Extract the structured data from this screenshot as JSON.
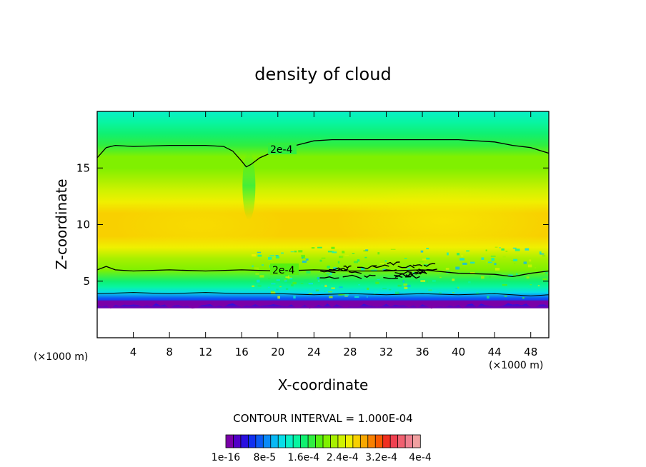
{
  "chart_data": {
    "type": "heatmap",
    "title": "density of cloud",
    "xlabel": "X-coordinate",
    "ylabel": "Z-coordinate",
    "x_unit": "(×1000 m)",
    "y_unit": "(×1000 m)",
    "xlim": [
      0,
      50
    ],
    "ylim": [
      0,
      20
    ],
    "x_ticks": [
      "4",
      "8",
      "12",
      "16",
      "20",
      "24",
      "28",
      "32",
      "36",
      "40",
      "44",
      "48"
    ],
    "y_ticks": [
      "5",
      "10",
      "15"
    ],
    "contour_interval_text": "CONTOUR INTERVAL = 1.000E-04",
    "contour_labels": [
      "2e-4",
      "2e-4"
    ],
    "colorbar_labels": [
      "1e-16",
      "8e-5",
      "1.6e-4",
      "2.4e-4",
      "3.2e-4",
      "4e-4"
    ],
    "colorbar_colors": [
      "#7a00a8",
      "#5200c8",
      "#2a10e0",
      "#1030f0",
      "#0a5af5",
      "#0a8af8",
      "#08b8f5",
      "#08dde8",
      "#08f0c8",
      "#08f5a0",
      "#10f070",
      "#30ee40",
      "#55f010",
      "#80f000",
      "#a8f000",
      "#d0f200",
      "#f0f000",
      "#f8d000",
      "#f8a800",
      "#f88000",
      "#f85a00",
      "#f03020",
      "#f04050",
      "#f06070",
      "#f08090",
      "#f0a0a0"
    ],
    "profile_z": [
      2.6,
      3.0,
      3.5,
      4.0,
      4.5,
      5.0,
      6.0,
      7.0,
      8.0,
      9.0,
      10.0,
      11.0,
      12.0,
      13.0,
      14.0,
      15.0,
      16.0,
      17.0,
      18.0,
      19.0,
      20.0
    ],
    "profile_value": [
      1e-16,
      4e-05,
      8e-05,
      0.00012,
      0.00015,
      0.00017,
      0.00021,
      0.00024,
      0.00026,
      0.00028,
      0.00029,
      0.000285,
      0.00027,
      0.00025,
      0.000235,
      0.000225,
      0.00021,
      0.00019,
      0.00017,
      0.000155,
      0.000145
    ],
    "contour_upper": {
      "level": "2e-4",
      "x": [
        0,
        1,
        2,
        4,
        8,
        12,
        14,
        15,
        16,
        16.5,
        17,
        18,
        20,
        22,
        24,
        26,
        28,
        32,
        36,
        40,
        44,
        46,
        48,
        50
      ],
      "z": [
        15.9,
        16.8,
        17.0,
        16.9,
        17.0,
        17.0,
        16.9,
        16.5,
        15.6,
        15.1,
        15.3,
        15.9,
        16.6,
        17.0,
        17.4,
        17.5,
        17.5,
        17.5,
        17.5,
        17.5,
        17.3,
        17.0,
        16.8,
        16.3
      ]
    },
    "contour_lower": {
      "level": "2e-4",
      "x": [
        0,
        1,
        2,
        4,
        8,
        12,
        16,
        20,
        24,
        28,
        32,
        36,
        40,
        44,
        46,
        48,
        50
      ],
      "z": [
        6.0,
        6.3,
        6.0,
        5.9,
        6.0,
        5.9,
        6.0,
        5.9,
        6.0,
        5.9,
        5.9,
        6.0,
        5.7,
        5.6,
        5.4,
        5.7,
        5.9
      ]
    },
    "contour_base": {
      "level": "1e-4",
      "x": [
        0,
        4,
        8,
        12,
        16,
        20,
        24,
        28,
        32,
        36,
        40,
        44,
        48,
        50
      ],
      "z": [
        3.9,
        4.0,
        3.9,
        4.0,
        3.9,
        3.9,
        3.8,
        3.9,
        3.8,
        3.9,
        3.8,
        3.9,
        3.7,
        3.8
      ]
    },
    "dip_center_x": 16.8,
    "grid": false
  }
}
